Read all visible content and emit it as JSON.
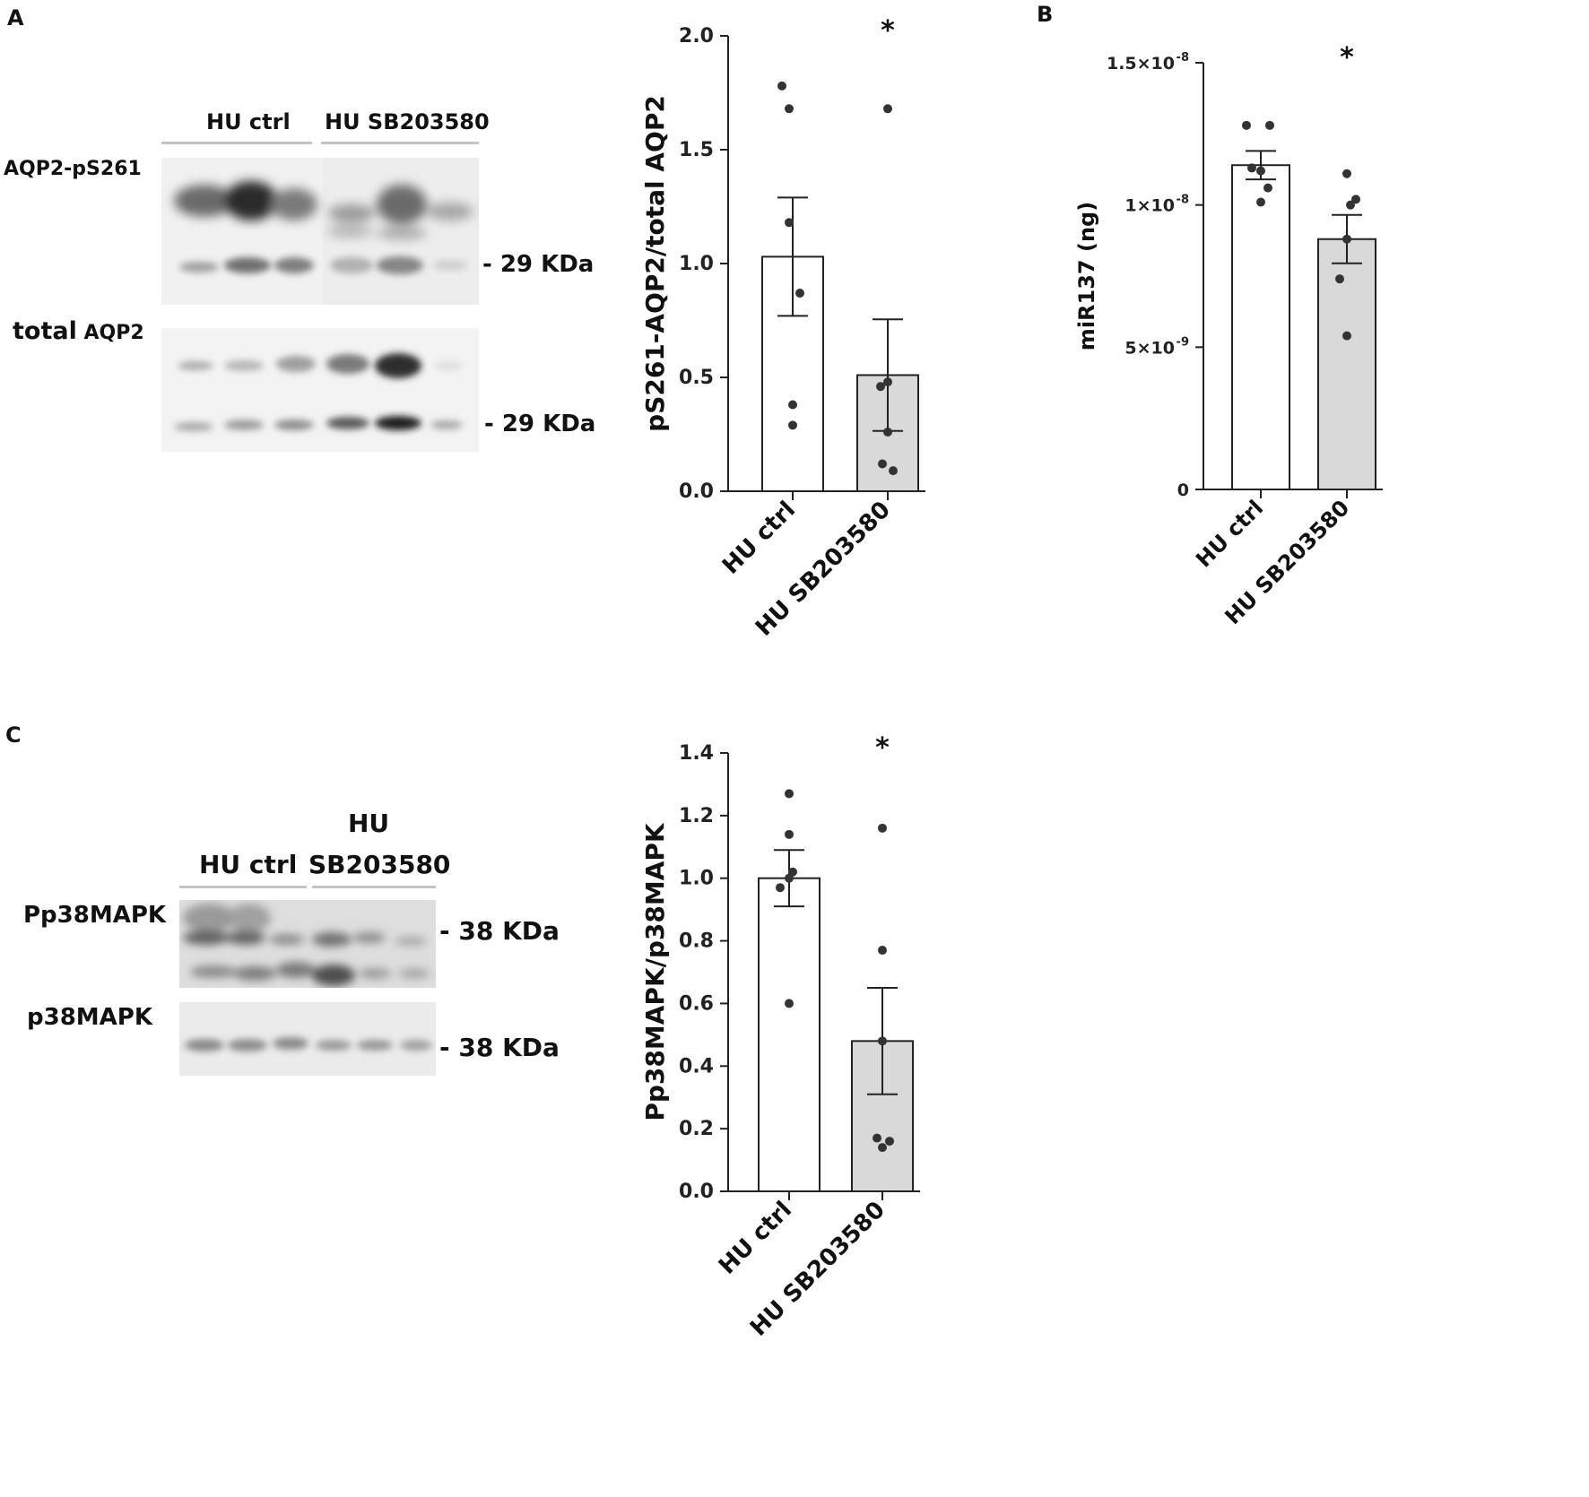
{
  "panels": {
    "A": "A",
    "B": "B",
    "C": "C"
  },
  "blot_a": {
    "lanes_left": "HU ctrl",
    "lanes_right": "HU SB203580",
    "row1_label": "AQP2-pS261",
    "row2_label_a": "total",
    "row2_label_b": "AQP2",
    "kda1": "- 29 KDa",
    "kda2": "- 29 KDa"
  },
  "blot_c": {
    "lanes_left": "HU ctrl",
    "lanes_right_line1": "HU",
    "lanes_right_line2": "SB203580",
    "row1_label": "Pp38MAPK",
    "row2_label": "p38MAPK",
    "kda1": "- 38 KDa",
    "kda2": "- 38 KDa"
  },
  "colors": {
    "ctrl_bar": "#ffffff",
    "treated_bar": "#d9d9d9",
    "points": "#333333",
    "axis": "#222222"
  },
  "chart_data": [
    {
      "id": "A",
      "type": "bar",
      "categories": [
        "HU ctrl",
        "HU SB203580"
      ],
      "values": [
        1.03,
        0.51
      ],
      "sem": [
        0.26,
        0.245
      ],
      "points": [
        [
          1.78,
          1.68,
          1.18,
          0.87,
          0.38,
          0.29
        ],
        [
          1.68,
          0.48,
          0.46,
          0.26,
          0.12,
          0.09
        ]
      ],
      "ylabel": "pS261-AQP2/total AQP2",
      "ylim": [
        0,
        2.0
      ],
      "yticks": [
        "0.0",
        "0.5",
        "1.0",
        "1.5",
        "2.0"
      ],
      "yticks_values": [
        0,
        0.5,
        1.0,
        1.5,
        2.0
      ],
      "significance": [
        "",
        "*"
      ]
    },
    {
      "id": "B",
      "type": "bar",
      "categories": [
        "HU ctrl",
        "HU SB203580"
      ],
      "values": [
        1.14e-08,
        8.8e-09
      ],
      "sem": [
        5e-10,
        8.5e-10
      ],
      "points": [
        [
          1.28e-08,
          1.28e-08,
          1.13e-08,
          1.12e-08,
          1.06e-08,
          1.01e-08
        ],
        [
          1.11e-08,
          1.02e-08,
          1e-08,
          8.8e-09,
          7.4e-09,
          5.4e-09
        ]
      ],
      "ylabel": "miR137 (ng)",
      "ylim": [
        0,
        1.5e-08
      ],
      "yticks": [
        "0",
        "5×10",
        "1×10",
        "1.5×10"
      ],
      "yticks_exp": [
        "",
        "-9",
        "-8",
        "-8"
      ],
      "yticks_values": [
        0,
        5e-09,
        1e-08,
        1.5e-08
      ],
      "significance": [
        "",
        "*"
      ]
    },
    {
      "id": "C",
      "type": "bar",
      "categories": [
        "HU ctrl",
        "HU SB203580"
      ],
      "values": [
        1.0,
        0.48
      ],
      "sem": [
        0.09,
        0.17
      ],
      "points": [
        [
          1.27,
          1.14,
          1.02,
          1.0,
          0.97,
          0.6
        ],
        [
          1.16,
          0.77,
          0.48,
          0.17,
          0.16,
          0.14
        ]
      ],
      "ylabel": "Pp38MAPK/p38MAPK",
      "ylim": [
        0,
        1.4
      ],
      "yticks": [
        "0.0",
        "0.2",
        "0.4",
        "0.6",
        "0.8",
        "1.0",
        "1.2",
        "1.4"
      ],
      "yticks_values": [
        0,
        0.2,
        0.4,
        0.6,
        0.8,
        1.0,
        1.2,
        1.4
      ],
      "significance": [
        "",
        "*"
      ]
    }
  ]
}
